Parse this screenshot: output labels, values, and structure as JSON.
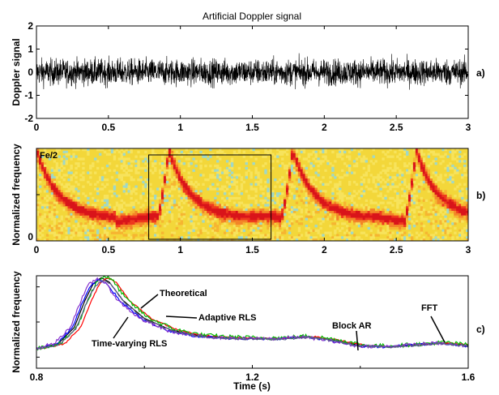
{
  "chart_data": [
    {
      "panel_label": "a)",
      "type": "line",
      "title": "Artificial Doppler signal",
      "xlabel": "",
      "ylabel": "Doppler signal",
      "xlim": [
        0,
        3
      ],
      "ylim": [
        -2,
        2
      ],
      "x_ticks": [
        "0",
        "0.5",
        "1",
        "1.5",
        "2",
        "2.5",
        "3"
      ],
      "y_ticks": [
        "-2",
        "-1",
        "0",
        "1",
        "2"
      ],
      "series": [
        {
          "values_summary": "dense random noise around 0, amplitude about ±0.5, peaks about ±1.0"
        }
      ]
    },
    {
      "panel_label": "b)",
      "type": "heatmap",
      "ylabel": "Normalized  frequency",
      "xlim": [
        0,
        3
      ],
      "ylim": [
        0,
        1
      ],
      "x_ticks": [
        "0",
        "0.5",
        "1",
        "1.5",
        "2",
        "2.5",
        "3"
      ],
      "y_ticks": [
        "0"
      ],
      "annotation": "Fe/2",
      "highlight_box": {
        "x_start": 0.78,
        "x_end": 1.63
      },
      "beat_peaks_s": [
        0.0,
        0.92,
        1.78,
        2.64
      ],
      "baseline_level": 0.24,
      "peak_level": 0.98
    },
    {
      "panel_label": "c)",
      "type": "line",
      "xlabel": "Time (s)",
      "ylabel": "Normalized  frequency",
      "xlim": [
        0.8,
        1.6
      ],
      "x_ticks": [
        "0.8",
        "1.2",
        "1.6"
      ],
      "annotations": [
        "Theoretical",
        "Adaptive RLS",
        "Time-varying RLS",
        "Block AR",
        "FFT"
      ],
      "series_colors": [
        "#000000",
        "#ff0000",
        "#0000ff",
        "#00bb00",
        "#8833cc",
        "#5a5a8a"
      ],
      "curve": {
        "x": [
          0.8,
          0.84,
          0.87,
          0.89,
          0.905,
          0.92,
          0.935,
          0.96,
          1.0,
          1.05,
          1.1,
          1.15,
          1.2,
          1.25,
          1.3,
          1.35,
          1.4,
          1.45,
          1.5,
          1.55,
          1.6
        ],
        "y": [
          0.22,
          0.27,
          0.45,
          0.75,
          0.93,
          1.0,
          0.95,
          0.75,
          0.55,
          0.42,
          0.36,
          0.34,
          0.33,
          0.33,
          0.35,
          0.31,
          0.25,
          0.24,
          0.26,
          0.28,
          0.25
        ]
      }
    }
  ]
}
